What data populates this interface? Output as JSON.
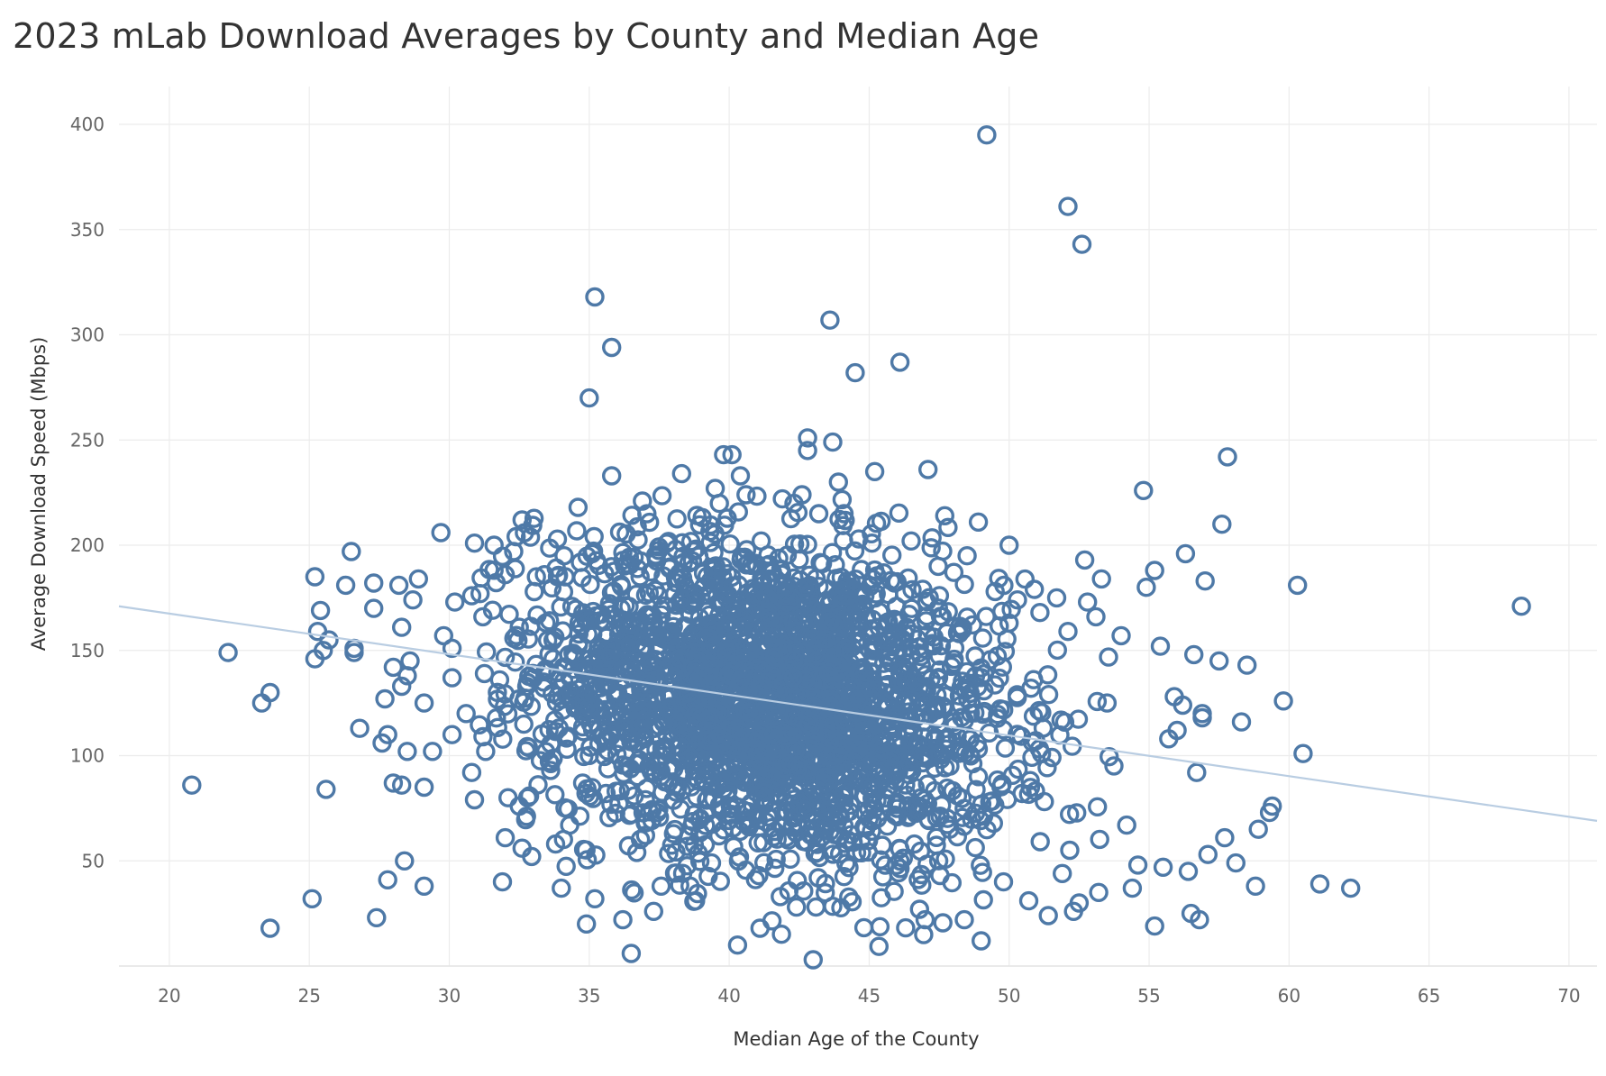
{
  "chart_data": {
    "type": "scatter",
    "title": "2023 mLab Download Averages by County and Median Age",
    "xlabel": "Median Age of the County",
    "ylabel": "Average Download Speed (Mbps)",
    "xlim": [
      18.2,
      71.0
    ],
    "ylim": [
      0,
      418
    ],
    "xticks": [
      20,
      25,
      30,
      35,
      40,
      45,
      50,
      55,
      60,
      65,
      70
    ],
    "yticks": [
      50,
      100,
      150,
      200,
      250,
      300,
      350,
      400
    ],
    "grid": true,
    "marker": "open-circle",
    "point_color": "#4e79a7",
    "trend_color": "#b9cde2",
    "trend_line": {
      "type": "linear",
      "points": [
        [
          18.2,
          171
        ],
        [
          71.0,
          69
        ]
      ]
    },
    "dense_cluster": {
      "center": [
        41.5,
        128
      ],
      "approx_points": 2600,
      "note_x_sd": 4.2,
      "note_y_sd": 38
    },
    "outliers": [
      [
        20.8,
        86
      ],
      [
        22.1,
        149
      ],
      [
        23.3,
        125
      ],
      [
        23.6,
        130
      ],
      [
        23.6,
        18
      ],
      [
        25.1,
        32
      ],
      [
        25.2,
        185
      ],
      [
        25.3,
        159
      ],
      [
        25.4,
        169
      ],
      [
        25.6,
        84
      ],
      [
        25.2,
        146
      ],
      [
        25.5,
        150
      ],
      [
        25.7,
        155
      ],
      [
        26.5,
        197
      ],
      [
        26.3,
        181
      ],
      [
        26.6,
        151
      ],
      [
        26.6,
        149
      ],
      [
        26.8,
        113
      ],
      [
        27.4,
        23
      ],
      [
        27.3,
        170
      ],
      [
        27.3,
        182
      ],
      [
        27.6,
        106
      ],
      [
        27.7,
        127
      ],
      [
        27.8,
        110
      ],
      [
        27.8,
        41
      ],
      [
        28.0,
        142
      ],
      [
        28.0,
        87
      ],
      [
        28.2,
        181
      ],
      [
        28.3,
        86
      ],
      [
        28.3,
        161
      ],
      [
        28.3,
        133
      ],
      [
        28.4,
        50
      ],
      [
        28.5,
        138
      ],
      [
        28.6,
        145
      ],
      [
        28.5,
        102
      ],
      [
        28.7,
        174
      ],
      [
        28.9,
        184
      ],
      [
        29.1,
        85
      ],
      [
        29.1,
        125
      ],
      [
        29.1,
        38
      ],
      [
        29.4,
        102
      ],
      [
        29.7,
        206
      ],
      [
        29.8,
        157
      ],
      [
        30.1,
        151
      ],
      [
        30.1,
        137
      ],
      [
        30.1,
        110
      ],
      [
        30.2,
        173
      ],
      [
        30.6,
        120
      ],
      [
        30.8,
        176
      ],
      [
        30.9,
        79
      ],
      [
        30.8,
        92
      ],
      [
        30.9,
        201
      ],
      [
        31.1,
        177
      ],
      [
        31.2,
        166
      ],
      [
        31.3,
        102
      ],
      [
        31.6,
        200
      ],
      [
        31.8,
        136
      ],
      [
        31.9,
        40
      ],
      [
        32.0,
        186
      ],
      [
        32.0,
        61
      ],
      [
        32.1,
        80
      ],
      [
        32.3,
        197
      ],
      [
        32.5,
        76
      ],
      [
        32.6,
        212
      ],
      [
        32.6,
        56
      ],
      [
        32.8,
        80
      ],
      [
        33.4,
        186
      ],
      [
        33.8,
        58
      ],
      [
        34.0,
        37
      ],
      [
        34.1,
        195
      ],
      [
        34.3,
        67
      ],
      [
        34.6,
        218
      ],
      [
        34.9,
        20
      ],
      [
        35.0,
        270
      ],
      [
        35.2,
        318
      ],
      [
        35.2,
        32
      ],
      [
        35.8,
        294
      ],
      [
        35.8,
        233
      ],
      [
        36.2,
        22
      ],
      [
        36.5,
        6
      ],
      [
        36.7,
        54
      ],
      [
        36.9,
        221
      ],
      [
        37.3,
        26
      ],
      [
        38.3,
        234
      ],
      [
        38.8,
        31
      ],
      [
        39.5,
        227
      ],
      [
        39.8,
        243
      ],
      [
        40.1,
        243
      ],
      [
        40.3,
        10
      ],
      [
        40.4,
        233
      ],
      [
        40.6,
        224
      ],
      [
        41.1,
        18
      ],
      [
        41.9,
        222
      ],
      [
        42.4,
        28
      ],
      [
        42.6,
        224
      ],
      [
        42.8,
        251
      ],
      [
        42.8,
        245
      ],
      [
        43.0,
        3
      ],
      [
        43.2,
        215
      ],
      [
        43.6,
        307
      ],
      [
        43.7,
        249
      ],
      [
        43.9,
        230
      ],
      [
        44.5,
        282
      ],
      [
        44.1,
        215
      ],
      [
        45.2,
        235
      ],
      [
        45.1,
        201
      ],
      [
        46.1,
        287
      ],
      [
        46.5,
        202
      ],
      [
        46.8,
        27
      ],
      [
        47.0,
        22
      ],
      [
        47.1,
        236
      ],
      [
        47.7,
        214
      ],
      [
        48.4,
        22
      ],
      [
        48.5,
        195
      ],
      [
        48.9,
        211
      ],
      [
        49.0,
        12
      ],
      [
        49.2,
        395
      ],
      [
        49.5,
        178
      ],
      [
        49.8,
        40
      ],
      [
        50.0,
        163
      ],
      [
        50.0,
        200
      ],
      [
        50.3,
        174
      ],
      [
        50.7,
        31
      ],
      [
        50.9,
        179
      ],
      [
        51.1,
        168
      ],
      [
        51.4,
        24
      ],
      [
        51.7,
        175
      ],
      [
        52.1,
        361
      ],
      [
        52.1,
        159
      ],
      [
        52.3,
        26
      ],
      [
        52.6,
        343
      ],
      [
        52.7,
        193
      ],
      [
        52.8,
        173
      ],
      [
        53.1,
        166
      ],
      [
        53.3,
        184
      ],
      [
        53.5,
        125
      ],
      [
        54.0,
        157
      ],
      [
        54.2,
        67
      ],
      [
        54.6,
        48
      ],
      [
        54.8,
        226
      ],
      [
        54.9,
        180
      ],
      [
        55.2,
        188
      ],
      [
        55.4,
        152
      ],
      [
        55.5,
        47
      ],
      [
        55.7,
        108
      ],
      [
        55.9,
        128
      ],
      [
        56.0,
        112
      ],
      [
        56.2,
        124
      ],
      [
        56.3,
        196
      ],
      [
        56.4,
        45
      ],
      [
        56.6,
        148
      ],
      [
        56.7,
        92
      ],
      [
        56.9,
        120
      ],
      [
        56.9,
        118
      ],
      [
        57.0,
        183
      ],
      [
        57.1,
        53
      ],
      [
        57.5,
        145
      ],
      [
        57.6,
        210
      ],
      [
        57.7,
        61
      ],
      [
        57.8,
        242
      ],
      [
        58.1,
        49
      ],
      [
        58.3,
        116
      ],
      [
        58.5,
        143
      ],
      [
        58.8,
        38
      ],
      [
        58.9,
        65
      ],
      [
        59.3,
        73
      ],
      [
        59.4,
        76
      ],
      [
        59.8,
        126
      ],
      [
        60.3,
        181
      ],
      [
        60.5,
        101
      ],
      [
        61.1,
        39
      ],
      [
        62.2,
        37
      ],
      [
        68.3,
        171
      ],
      [
        56.5,
        25
      ],
      [
        56.8,
        22
      ],
      [
        55.2,
        19
      ],
      [
        54.4,
        37
      ],
      [
        53.2,
        35
      ],
      [
        52.5,
        30
      ],
      [
        51.9,
        44
      ]
    ]
  }
}
